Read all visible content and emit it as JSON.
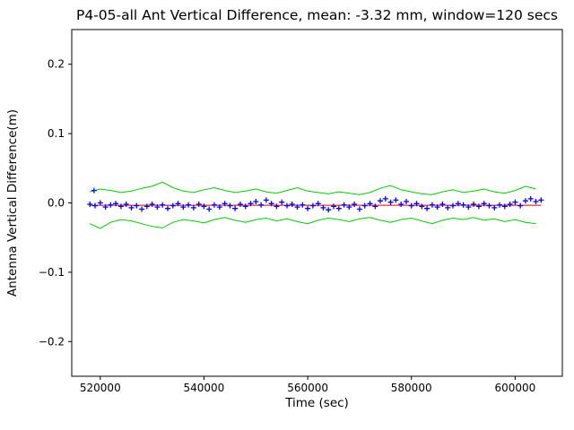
{
  "colors": {
    "background": "#ffffff",
    "axes_frame": "#000000",
    "scatter_blue": "#0000ff",
    "envelope_green": "#00cc00",
    "mean_red": "#dd0000"
  },
  "chart_data": {
    "type": "scatter",
    "title": "P4-05-all Ant Vertical Difference, mean: -3.32 mm, window=120 secs",
    "xlabel": "Time (sec)",
    "ylabel": "Antenna Vertical Difference(m)",
    "xlim": [
      514500,
      609100
    ],
    "ylim": [
      -0.25,
      0.25
    ],
    "grid": false,
    "legend": null,
    "xticks": [
      {
        "v": 520000,
        "label": "520000"
      },
      {
        "v": 540000,
        "label": "540000"
      },
      {
        "v": 560000,
        "label": "560000"
      },
      {
        "v": 580000,
        "label": "580000"
      },
      {
        "v": 600000,
        "label": "600000"
      }
    ],
    "yticks": [
      {
        "v": -0.2,
        "label": "−0.2"
      },
      {
        "v": -0.1,
        "label": "−0.1"
      },
      {
        "v": 0.0,
        "label": "0.0"
      },
      {
        "v": 0.1,
        "label": "0.1"
      },
      {
        "v": 0.2,
        "label": "0.2"
      }
    ],
    "series": [
      {
        "name": "upper-envelope",
        "type": "line",
        "color": "#00cc00",
        "x": [
          518000,
          520000,
          522000,
          524000,
          526000,
          528000,
          530000,
          532000,
          534000,
          536000,
          538000,
          540000,
          542000,
          544000,
          546000,
          548000,
          550000,
          552000,
          554000,
          556000,
          558000,
          560000,
          562000,
          564000,
          566000,
          568000,
          570000,
          572000,
          574000,
          576000,
          578000,
          580000,
          582000,
          584000,
          586000,
          588000,
          590000,
          592000,
          594000,
          596000,
          598000,
          600000,
          602000,
          604000
        ],
        "y": [
          0.016,
          0.02,
          0.018,
          0.015,
          0.017,
          0.021,
          0.024,
          0.03,
          0.022,
          0.017,
          0.015,
          0.019,
          0.022,
          0.018,
          0.015,
          0.017,
          0.02,
          0.016,
          0.014,
          0.018,
          0.022,
          0.017,
          0.015,
          0.013,
          0.016,
          0.014,
          0.012,
          0.015,
          0.021,
          0.025,
          0.019,
          0.016,
          0.013,
          0.012,
          0.016,
          0.019,
          0.015,
          0.017,
          0.02,
          0.016,
          0.014,
          0.018,
          0.024,
          0.02
        ]
      },
      {
        "name": "lower-envelope",
        "type": "line",
        "color": "#00cc00",
        "x": [
          518000,
          520000,
          522000,
          524000,
          526000,
          528000,
          530000,
          532000,
          534000,
          536000,
          538000,
          540000,
          542000,
          544000,
          546000,
          548000,
          550000,
          552000,
          554000,
          556000,
          558000,
          560000,
          562000,
          564000,
          566000,
          568000,
          570000,
          572000,
          574000,
          576000,
          578000,
          580000,
          582000,
          584000,
          586000,
          588000,
          590000,
          592000,
          594000,
          596000,
          598000,
          600000,
          602000,
          604000
        ],
        "y": [
          -0.03,
          -0.037,
          -0.028,
          -0.024,
          -0.026,
          -0.03,
          -0.034,
          -0.036,
          -0.028,
          -0.024,
          -0.026,
          -0.029,
          -0.024,
          -0.021,
          -0.025,
          -0.028,
          -0.024,
          -0.022,
          -0.026,
          -0.023,
          -0.027,
          -0.03,
          -0.025,
          -0.022,
          -0.024,
          -0.027,
          -0.023,
          -0.021,
          -0.025,
          -0.028,
          -0.024,
          -0.022,
          -0.026,
          -0.03,
          -0.025,
          -0.022,
          -0.024,
          -0.021,
          -0.025,
          -0.023,
          -0.027,
          -0.024,
          -0.028,
          -0.03
        ]
      },
      {
        "name": "mean-line",
        "type": "line",
        "color": "#dd0000",
        "x": [
          518000,
          605000
        ],
        "y": [
          -0.0033,
          -0.0033
        ]
      },
      {
        "name": "antenna-vertical-difference",
        "type": "scatter",
        "marker": "+",
        "color": "#0000ff",
        "x": [
          518000,
          519000,
          520000,
          521000,
          522000,
          523000,
          524000,
          525000,
          526000,
          527000,
          528000,
          529000,
          530000,
          531000,
          532000,
          533000,
          534000,
          535000,
          536000,
          537000,
          538000,
          539000,
          540000,
          541000,
          542000,
          543000,
          544000,
          545000,
          546000,
          547000,
          548000,
          549000,
          550000,
          551000,
          552000,
          553000,
          554000,
          555000,
          556000,
          557000,
          558000,
          559000,
          560000,
          561000,
          562000,
          563000,
          564000,
          565000,
          566000,
          567000,
          568000,
          569000,
          570000,
          571000,
          572000,
          573000,
          574000,
          575000,
          576000,
          577000,
          578000,
          579000,
          580000,
          581000,
          582000,
          583000,
          584000,
          585000,
          586000,
          587000,
          588000,
          589000,
          590000,
          591000,
          592000,
          593000,
          594000,
          595000,
          596000,
          597000,
          598000,
          599000,
          600000,
          601000,
          602000,
          603000,
          604000,
          605000
        ],
        "y": [
          -0.002,
          -0.004,
          0.0,
          -0.006,
          -0.003,
          -0.001,
          -0.005,
          -0.002,
          -0.007,
          -0.004,
          -0.009,
          -0.005,
          -0.002,
          -0.006,
          -0.003,
          -0.008,
          -0.004,
          -0.001,
          -0.006,
          -0.003,
          -0.007,
          -0.002,
          -0.005,
          -0.009,
          -0.003,
          -0.006,
          -0.001,
          -0.004,
          -0.008,
          -0.002,
          -0.005,
          -0.001,
          0.002,
          -0.003,
          0.004,
          -0.001,
          -0.005,
          0.001,
          -0.004,
          -0.002,
          -0.006,
          -0.003,
          -0.008,
          -0.004,
          -0.001,
          -0.007,
          -0.01,
          -0.005,
          -0.008,
          -0.003,
          -0.006,
          -0.002,
          -0.009,
          -0.004,
          -0.001,
          -0.005,
          0.003,
          0.006,
          0.001,
          0.004,
          -0.002,
          0.002,
          -0.004,
          -0.001,
          -0.005,
          -0.008,
          -0.003,
          -0.006,
          -0.002,
          -0.007,
          -0.004,
          -0.001,
          -0.003,
          -0.006,
          -0.002,
          -0.005,
          -0.001,
          -0.004,
          -0.007,
          -0.003,
          -0.005,
          -0.002,
          0.001,
          -0.004,
          0.003,
          0.006,
          0.002,
          0.004
        ]
      },
      {
        "name": "outlier-point",
        "type": "scatter",
        "marker": "+",
        "color": "#0000ff",
        "x": [
          518800
        ],
        "y": [
          0.018
        ]
      }
    ]
  }
}
